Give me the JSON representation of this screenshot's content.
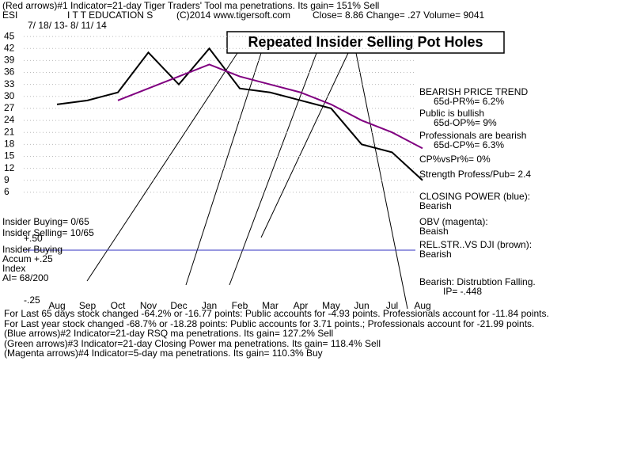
{
  "header": [
    "(Red arrows)#1 Indicator=21-day Tiger Traders' Tool ma penetrations. Its gain= 151% Sell",
    "ESI",
    "I T T EDUCATION S",
    "(C)2014 www.tigersoft.com",
    "Close=  8.86  Change= .27 Volume= 9041",
    "7/ 18/ 13-  8/ 11/ 14"
  ],
  "callout": "Repeated Insider Selling Pot Holes",
  "right_notes": [
    "BEARISH PRICE TREND",
    "65d-PR%= 6.2%",
    "Public is bullish",
    "65d-OP%= 9%",
    "Professionals are bearish",
    "65d-CP%= 6.3%",
    "CP%vsPr%=  0%",
    "Strength Profess/Pub= 2.4",
    "CLOSING POWER (blue):",
    "Bearish",
    "OBV (magenta):",
    "Beaish",
    "REL.STR..VS DJI (brown):",
    "Bearish",
    "Bearish: Distrubtion Falling.",
    "IP= -.448"
  ],
  "left_notes": [
    "Insider Buying= 0/65",
    "Insider Selling= 10/65",
    "+.50",
    "Insider Buying",
    "Accum  +.25",
    "Index",
    "AI= 68/200",
    "-.25"
  ],
  "footer": [
    "For Last 65 days stock changed -64.2% or -16.77 points:  Public accounts for -4.93 points.  Professionals account for -11.84 points.",
    "For Last year stock changed -68.7% or -18.28 points:  Public accounts for  3.71 points.;  Professionals account for -21.99 points.",
    "(Blue arrows)#2 Indicator=21-day RSQ ma penetrations. Its gain= 127.2% Sell",
    "(Green arrows)#3 Indicator=21-day Closing Power ma penetrations. Its gain= 118.4% Sell",
    "(Magenta arrows)#4 Indicator=5-day ma penetrations. Its gain= 110.3% Buy"
  ],
  "chart_data": {
    "type": "line",
    "categories": [
      "Aug",
      "Sep",
      "Oct",
      "Nov",
      "Dec",
      "Jan",
      "Feb",
      "Mar",
      "Apr",
      "May",
      "Jun",
      "Jul",
      "Aug"
    ],
    "series": [
      {
        "name": "Close",
        "color": "#000000",
        "values": [
          28,
          29,
          31,
          41,
          33,
          42,
          32,
          31,
          29,
          27,
          18,
          16,
          9
        ]
      },
      {
        "name": "21-day ma",
        "color": "#800080",
        "values": [
          null,
          null,
          29,
          32,
          35,
          38,
          35,
          33,
          31,
          28,
          24,
          21,
          17
        ]
      }
    ],
    "ylim": [
      3,
      48
    ],
    "yticks": [
      45,
      42,
      39,
      36,
      33,
      30,
      27,
      24,
      21,
      18,
      15,
      12,
      9,
      6
    ],
    "grid": true
  }
}
